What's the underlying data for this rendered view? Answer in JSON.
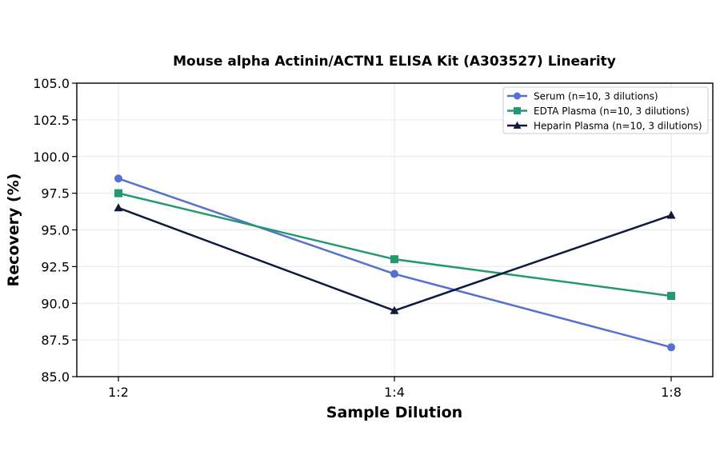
{
  "chart_data": {
    "type": "line",
    "title": "Mouse alpha Actinin/ACTN1 ELISA Kit (A303527) Linearity",
    "xlabel": "Sample Dilution",
    "ylabel": "Recovery (%)",
    "categories": [
      "1:2",
      "1:4",
      "1:8"
    ],
    "ylim": [
      85.0,
      105.0
    ],
    "yticks": [
      "85.0",
      "87.5",
      "90.0",
      "92.5",
      "95.0",
      "97.5",
      "100.0",
      "102.5",
      "105.0"
    ],
    "grid": true,
    "legend_position": "top-right",
    "series": [
      {
        "name": "Serum (n=10, 3 dilutions)",
        "values": [
          98.5,
          92.0,
          87.0
        ],
        "color": "#5470d1",
        "marker": "circle"
      },
      {
        "name": "EDTA Plasma (n=10, 3 dilutions)",
        "values": [
          97.5,
          93.0,
          90.5
        ],
        "color": "#23996f",
        "marker": "square"
      },
      {
        "name": "Heparin Plasma (n=10, 3 dilutions)",
        "values": [
          96.5,
          89.5,
          96.0
        ],
        "color": "#0f1a3c",
        "marker": "triangle"
      }
    ]
  }
}
